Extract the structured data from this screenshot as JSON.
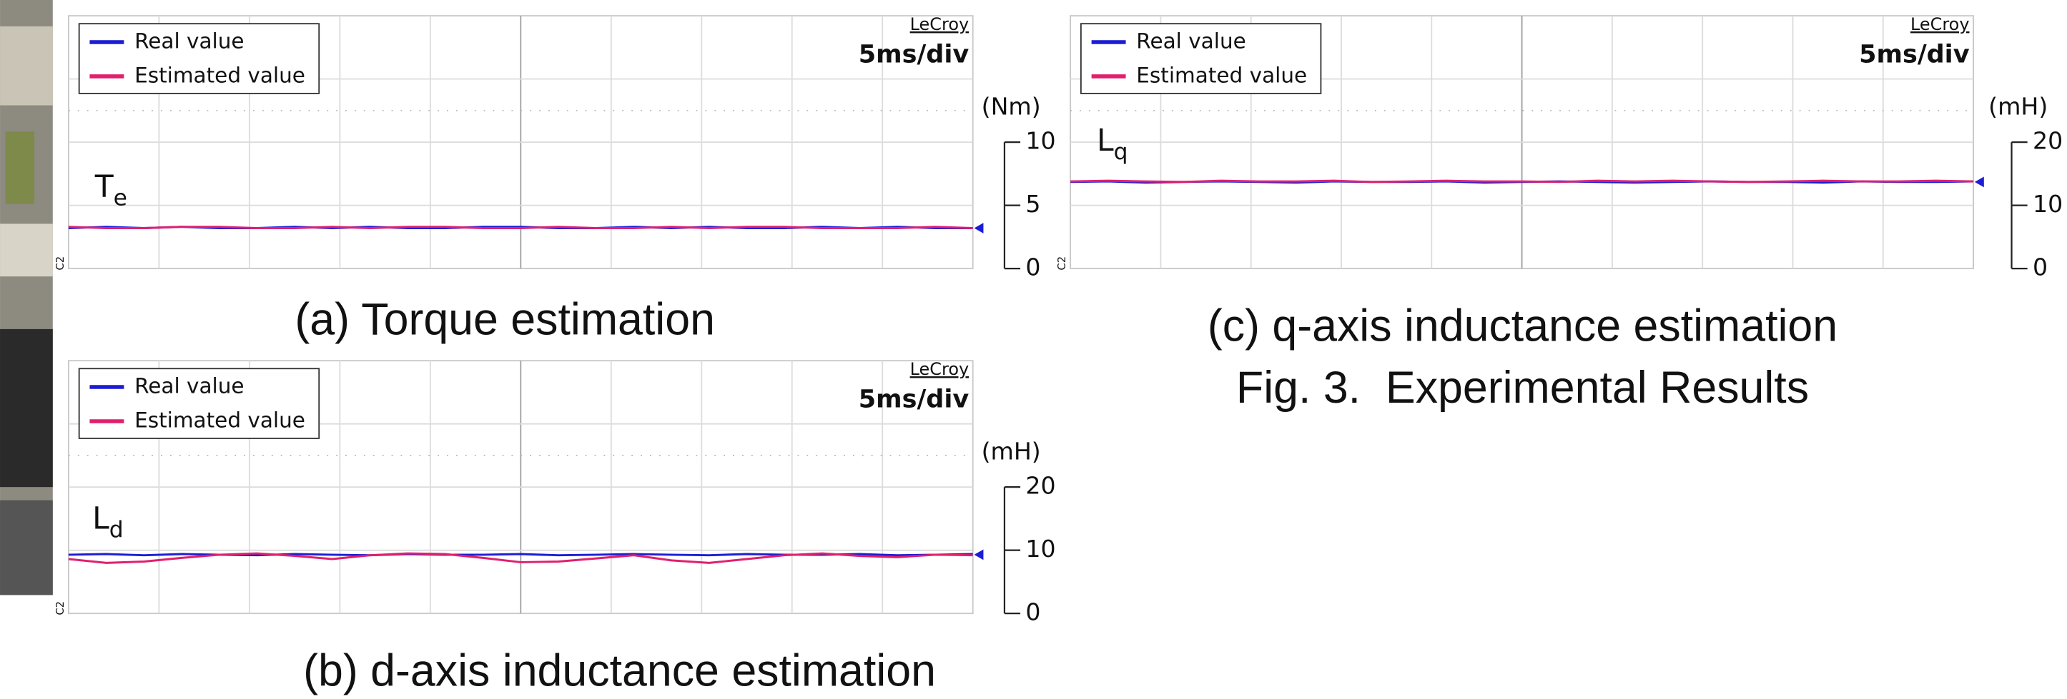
{
  "figure_caption": "Fig. 3.  Experimental Results",
  "chart_data": [
    {
      "type": "line",
      "title": "(a) Torque estimation",
      "brand": "LeCroy",
      "timebase": "5ms/div",
      "channel": "C2",
      "y_unit": "(Nm)",
      "label": "T",
      "label_sub": "e",
      "ylim": [
        0,
        20
      ],
      "yticks": [
        0,
        5,
        10
      ],
      "series": [
        {
          "name": "Real value",
          "color": "#1c1cd6",
          "values": [
            3.2,
            3.3,
            3.2,
            3.3,
            3.2,
            3.2,
            3.3,
            3.2,
            3.3,
            3.2,
            3.2,
            3.3,
            3.3,
            3.2,
            3.2,
            3.3,
            3.2,
            3.3,
            3.2,
            3.2,
            3.3,
            3.2,
            3.3,
            3.2,
            3.2
          ]
        },
        {
          "name": "Estimated value",
          "color": "#e0206e",
          "values": [
            3.3,
            3.2,
            3.2,
            3.3,
            3.3,
            3.2,
            3.2,
            3.3,
            3.2,
            3.3,
            3.3,
            3.2,
            3.2,
            3.3,
            3.2,
            3.2,
            3.3,
            3.2,
            3.3,
            3.3,
            3.2,
            3.2,
            3.2,
            3.3,
            3.2
          ]
        }
      ]
    },
    {
      "type": "line",
      "title": "(b) d-axis inductance estimation",
      "brand": "LeCroy",
      "timebase": "5ms/div",
      "channel": "C2",
      "y_unit": "(mH)",
      "label": "L",
      "label_sub": "d",
      "ylim": [
        0,
        40
      ],
      "yticks": [
        0,
        10,
        20
      ],
      "series": [
        {
          "name": "Real value",
          "color": "#1c1cd6",
          "values": [
            9.3,
            9.4,
            9.2,
            9.4,
            9.3,
            9.2,
            9.4,
            9.3,
            9.2,
            9.4,
            9.3,
            9.3,
            9.4,
            9.2,
            9.3,
            9.4,
            9.3,
            9.2,
            9.4,
            9.3,
            9.3,
            9.4,
            9.2,
            9.3,
            9.4
          ]
        },
        {
          "name": "Estimated value",
          "color": "#e0206e",
          "values": [
            8.6,
            8.0,
            8.2,
            8.8,
            9.3,
            9.5,
            9.1,
            8.6,
            9.2,
            9.5,
            9.4,
            8.8,
            8.1,
            8.2,
            8.7,
            9.2,
            8.4,
            8.0,
            8.6,
            9.2,
            9.5,
            9.1,
            8.9,
            9.3,
            9.2
          ]
        }
      ]
    },
    {
      "type": "line",
      "title": "(c) q-axis inductance estimation",
      "brand": "LeCroy",
      "timebase": "5ms/div",
      "channel": "C2",
      "y_unit": "(mH)",
      "label": "L",
      "label_sub": "q",
      "ylim": [
        0,
        40
      ],
      "yticks": [
        0,
        10,
        20
      ],
      "series": [
        {
          "name": "Real value",
          "color": "#1c1cd6",
          "values": [
            13.7,
            13.8,
            13.6,
            13.7,
            13.8,
            13.7,
            13.6,
            13.8,
            13.7,
            13.7,
            13.8,
            13.6,
            13.7,
            13.8,
            13.7,
            13.6,
            13.7,
            13.8,
            13.7,
            13.7,
            13.6,
            13.8,
            13.7,
            13.7,
            13.8
          ]
        },
        {
          "name": "Estimated value",
          "color": "#e0206e",
          "values": [
            13.8,
            13.9,
            13.8,
            13.7,
            13.9,
            13.8,
            13.8,
            13.9,
            13.7,
            13.8,
            13.9,
            13.8,
            13.8,
            13.7,
            13.9,
            13.8,
            13.9,
            13.8,
            13.7,
            13.8,
            13.9,
            13.8,
            13.8,
            13.9,
            13.8
          ]
        }
      ]
    }
  ]
}
